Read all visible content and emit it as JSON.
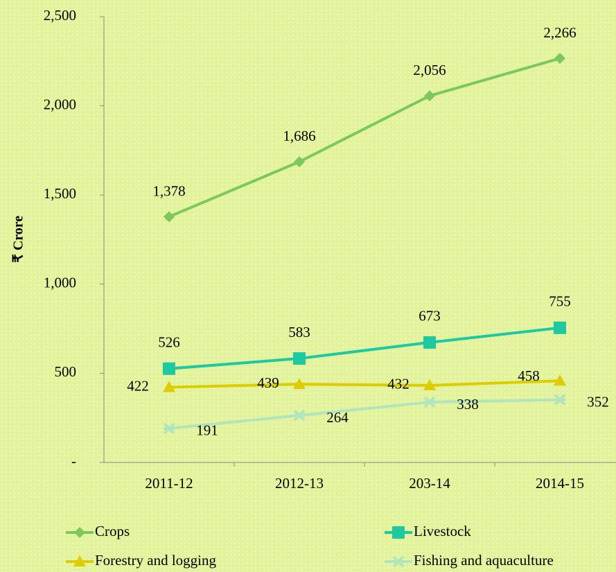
{
  "chart_data": {
    "type": "line",
    "y_label": "₹ Crore",
    "categories": [
      "2011-12",
      "2012-13",
      "203-14",
      "2014-15"
    ],
    "series": [
      {
        "name": "Crops",
        "color": "#7cc85c",
        "marker": "diamond",
        "values": [
          1378,
          1686,
          2056,
          2266
        ],
        "value_labels": [
          "1,378",
          "1,686",
          "2,056",
          "2,266"
        ]
      },
      {
        "name": "Livestock",
        "color": "#1ec8a0",
        "marker": "square",
        "values": [
          526,
          583,
          673,
          755
        ]
      },
      {
        "name": "Forestry and logging",
        "color": "#dccd00",
        "marker": "triangle",
        "values": [
          422,
          439,
          432,
          458
        ]
      },
      {
        "name": "Fishing and aquaculture",
        "color": "#b2e4be",
        "marker": "x",
        "values": [
          191,
          264,
          338,
          352
        ]
      }
    ],
    "ylim": [
      0,
      2500
    ],
    "yticks": [
      {
        "value": 0,
        "label": "-"
      },
      500,
      {
        "value": 1000,
        "label": "1,000"
      },
      {
        "value": 1500,
        "label": "1,500"
      },
      {
        "value": 2000,
        "label": "2,000"
      },
      {
        "value": 2500,
        "label": "2,500"
      }
    ],
    "legend": "bottom"
  }
}
